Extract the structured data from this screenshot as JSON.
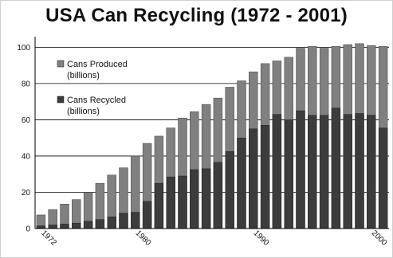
{
  "chart_data": {
    "type": "bar",
    "title": "USA Can Recycling (1972 - 2001)",
    "xlabel": "",
    "ylabel": "",
    "ylim": [
      0,
      105
    ],
    "yticks": [
      0,
      20,
      40,
      60,
      80,
      100
    ],
    "grid": true,
    "stacking": "overlay",
    "legend_position": "top-left",
    "categories": [
      1972,
      1973,
      1974,
      1975,
      1976,
      1977,
      1978,
      1979,
      1980,
      1981,
      1982,
      1983,
      1984,
      1985,
      1986,
      1987,
      1988,
      1989,
      1990,
      1991,
      1992,
      1993,
      1994,
      1995,
      1996,
      1997,
      1998,
      1999,
      2000,
      2001
    ],
    "xtick_labels": [
      {
        "year": 1972,
        "label": "1972"
      },
      {
        "year": 1980,
        "label": "1980"
      },
      {
        "year": 1990,
        "label": "1990"
      },
      {
        "year": 2000,
        "label": "2000"
      }
    ],
    "series": [
      {
        "name": "Cans Produced\n(billions)",
        "color": "#808080",
        "values": [
          7.5,
          10.5,
          13.5,
          16,
          20,
          25,
          29.5,
          33.5,
          40,
          47,
          51,
          55.5,
          61,
          64.5,
          68.5,
          72,
          78,
          81.5,
          86.5,
          91,
          92.5,
          94.5,
          99.5,
          100.5,
          99.5,
          100.5,
          101.5,
          102,
          101,
          100.5
        ]
      },
      {
        "name": "Cans Recycled\n(billions)",
        "color": "#3c3c3c",
        "values": [
          1.5,
          2,
          2.5,
          3,
          4,
          5,
          6.5,
          8.5,
          9,
          15,
          25,
          28.5,
          29,
          32.5,
          33,
          36.5,
          42.5,
          50,
          55,
          57,
          63,
          60,
          65,
          62.5,
          62.5,
          66.5,
          63,
          63.5,
          62.5,
          55.5
        ]
      }
    ]
  }
}
